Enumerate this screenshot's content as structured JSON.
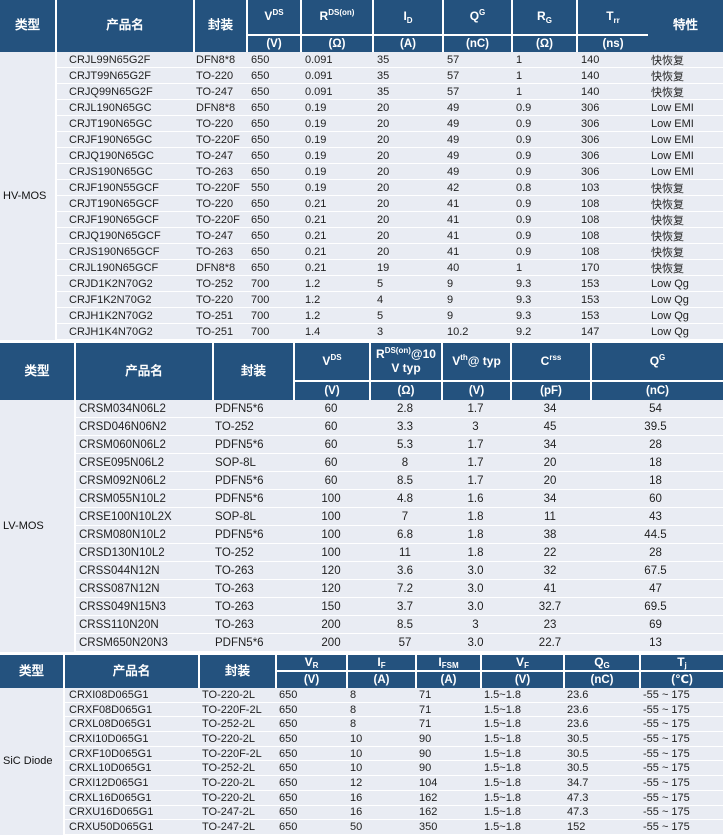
{
  "colors": {
    "header_bg": "#24527E",
    "row_bg": "#E9ECF3",
    "divider": "#FFFFFF",
    "header_text": "#FFFFFF",
    "body_text": "#1F1F1F"
  },
  "common_headers": {
    "type": "类型",
    "product": "产品名",
    "package": "封装",
    "feature": "特性"
  },
  "sections": [
    {
      "type_label": "HV-MOS",
      "params": [
        {
          "base": "V",
          "script": "DS",
          "rest": "",
          "unit": "(V)"
        },
        {
          "base": "R",
          "script": "DS(on)",
          "rest": "",
          "unit": "(Ω)"
        },
        {
          "base": "I",
          "script": "D",
          "rest": "",
          "unit": "(A)"
        },
        {
          "base": "Q",
          "script": "G",
          "rest": "",
          "unit": "(nC)"
        },
        {
          "base": "R",
          "script": "G",
          "rest": "",
          "unit": "(Ω)"
        },
        {
          "base": "T",
          "script": "rr",
          "rest": "",
          "unit": "(ns)"
        }
      ],
      "rows": [
        [
          "CRJL99N65G2F",
          "DFN8*8",
          "650",
          "0.091",
          "35",
          "57",
          "1",
          "140",
          "快恢复"
        ],
        [
          "CRJT99N65G2F",
          "TO-220",
          "650",
          "0.091",
          "35",
          "57",
          "1",
          "140",
          "快恢复"
        ],
        [
          "CRJQ99N65G2F",
          "TO-247",
          "650",
          "0.091",
          "35",
          "57",
          "1",
          "140",
          "快恢复"
        ],
        [
          "CRJL190N65GC",
          "DFN8*8",
          "650",
          "0.19",
          "20",
          "49",
          "0.9",
          "306",
          "Low EMI"
        ],
        [
          "CRJT190N65GC",
          "TO-220",
          "650",
          "0.19",
          "20",
          "49",
          "0.9",
          "306",
          "Low EMI"
        ],
        [
          "CRJF190N65GC",
          "TO-220F",
          "650",
          "0.19",
          "20",
          "49",
          "0.9",
          "306",
          "Low EMI"
        ],
        [
          "CRJQ190N65GC",
          "TO-247",
          "650",
          "0.19",
          "20",
          "49",
          "0.9",
          "306",
          "Low EMI"
        ],
        [
          "CRJS190N65GC",
          "TO-263",
          "650",
          "0.19",
          "20",
          "49",
          "0.9",
          "306",
          "Low EMI"
        ],
        [
          "CRJF190N55GCF",
          "TO-220F",
          "550",
          "0.19",
          "20",
          "42",
          "0.8",
          "103",
          "快恢复"
        ],
        [
          "CRJT190N65GCF",
          "TO-220",
          "650",
          "0.21",
          "20",
          "41",
          "0.9",
          "108",
          "快恢复"
        ],
        [
          "CRJF190N65GCF",
          "TO-220F",
          "650",
          "0.21",
          "20",
          "41",
          "0.9",
          "108",
          "快恢复"
        ],
        [
          "CRJQ190N65GCF",
          "TO-247",
          "650",
          "0.21",
          "20",
          "41",
          "0.9",
          "108",
          "快恢复"
        ],
        [
          "CRJS190N65GCF",
          "TO-263",
          "650",
          "0.21",
          "20",
          "41",
          "0.9",
          "108",
          "快恢复"
        ],
        [
          "CRJL190N65GCF",
          "DFN8*8",
          "650",
          "0.21",
          "19",
          "40",
          "1",
          "170",
          "快恢复"
        ],
        [
          "CRJD1K2N70G2",
          "TO-252",
          "700",
          "1.2",
          "5",
          "9",
          "9.3",
          "153",
          "Low Qg"
        ],
        [
          "CRJF1K2N70G2",
          "TO-220",
          "700",
          "1.2",
          "4",
          "9",
          "9.3",
          "153",
          "Low Qg"
        ],
        [
          "CRJH1K2N70G2",
          "TO-251",
          "700",
          "1.2",
          "5",
          "9",
          "9.3",
          "153",
          "Low Qg"
        ],
        [
          "CRJH1K4N70G2",
          "TO-251",
          "700",
          "1.4",
          "3",
          "10.2",
          "9.2",
          "147",
          "Low Qg"
        ]
      ]
    },
    {
      "type_label": "LV-MOS",
      "params": [
        {
          "base": "V",
          "script": "DS",
          "rest": "",
          "line2": "",
          "unit": "(V)"
        },
        {
          "base": "R",
          "script": "DS(on)",
          "rest": "@10",
          "line2": "V typ",
          "unit": "(Ω)"
        },
        {
          "base": "V",
          "script": "th",
          "rest": "@ typ",
          "line2": "",
          "unit": "(V)"
        },
        {
          "base": "C",
          "script": "rss",
          "rest": "",
          "line2": "",
          "unit": "(pF)"
        },
        {
          "base": "Q",
          "script": "G",
          "rest": "",
          "line2": "",
          "unit": "(nC)"
        }
      ],
      "rows": [
        [
          "CRSM034N06L2",
          "PDFN5*6",
          "60",
          "2.8",
          "1.7",
          "34",
          "54"
        ],
        [
          "CRSD046N06N2",
          "TO-252",
          "60",
          "3.3",
          "3",
          "45",
          "39.5"
        ],
        [
          "CRSM060N06L2",
          "PDFN5*6",
          "60",
          "5.3",
          "1.7",
          "34",
          "28"
        ],
        [
          "CRSE095N06L2",
          "SOP-8L",
          "60",
          "8",
          "1.7",
          "20",
          "18"
        ],
        [
          "CRSM092N06L2",
          "PDFN5*6",
          "60",
          "8.5",
          "1.7",
          "20",
          "18"
        ],
        [
          "CRSM055N10L2",
          "PDFN5*6",
          "100",
          "4.8",
          "1.6",
          "34",
          "60"
        ],
        [
          "CRSE100N10L2X",
          "SOP-8L",
          "100",
          "7",
          "1.8",
          "11",
          "43"
        ],
        [
          "CRSM080N10L2",
          "PDFN5*6",
          "100",
          "6.8",
          "1.8",
          "38",
          "44.5"
        ],
        [
          "CRSD130N10L2",
          "TO-252",
          "100",
          "11",
          "1.8",
          "22",
          "28"
        ],
        [
          "CRSS044N12N",
          "TO-263",
          "120",
          "3.6",
          "3.0",
          "32",
          "67.5"
        ],
        [
          "CRSS087N12N",
          "TO-263",
          "120",
          "7.2",
          "3.0",
          "41",
          "47"
        ],
        [
          "CRSS049N15N3",
          "TO-263",
          "150",
          "3.7",
          "3.0",
          "32.7",
          "69.5"
        ],
        [
          "CRSS110N20N",
          "TO-263",
          "200",
          "8.5",
          "3",
          "23",
          "69"
        ],
        [
          "CRSM650N20N3",
          "PDFN5*6",
          "200",
          "57",
          "3.0",
          "22.7",
          "13"
        ]
      ]
    },
    {
      "type_label": "SiC Diode",
      "params": [
        {
          "base": "V",
          "script": "R",
          "rest": "",
          "unit": "(V)"
        },
        {
          "base": "I",
          "script": "F",
          "rest": "",
          "unit": "(A)"
        },
        {
          "base": "I",
          "script": "FSM",
          "rest": "",
          "unit": "(A)"
        },
        {
          "base": "V",
          "script": "F",
          "rest": "",
          "unit": "(V)"
        },
        {
          "base": "Q",
          "script": "G",
          "rest": "",
          "unit": "(nC)"
        },
        {
          "base": "T",
          "script": "j",
          "rest": "",
          "unit": "(℃)"
        }
      ],
      "rows": [
        [
          "CRXI08D065G1",
          "TO-220-2L",
          "650",
          "8",
          "71",
          "1.5~1.8",
          "23.6",
          "-55 ~ 175"
        ],
        [
          "CRXF08D065G1",
          "TO-220F-2L",
          "650",
          "8",
          "71",
          "1.5~1.8",
          "23.6",
          "-55 ~ 175"
        ],
        [
          "CRXL08D065G1",
          "TO-252-2L",
          "650",
          "8",
          "71",
          "1.5~1.8",
          "23.6",
          "-55 ~ 175"
        ],
        [
          "CRXI10D065G1",
          "TO-220-2L",
          "650",
          "10",
          "90",
          "1.5~1.8",
          "30.5",
          "-55 ~ 175"
        ],
        [
          "CRXF10D065G1",
          "TO-220F-2L",
          "650",
          "10",
          "90",
          "1.5~1.8",
          "30.5",
          "-55 ~ 175"
        ],
        [
          "CRXL10D065G1",
          "TO-252-2L",
          "650",
          "10",
          "90",
          "1.5~1.8",
          "30.5",
          "-55 ~ 175"
        ],
        [
          "CRXI12D065G1",
          "TO-220-2L",
          "650",
          "12",
          "104",
          "1.5~1.8",
          "34.7",
          "-55 ~ 175"
        ],
        [
          "CRXL16D065G1",
          "TO-220-2L",
          "650",
          "16",
          "162",
          "1.5~1.8",
          "47.3",
          "-55 ~ 175"
        ],
        [
          "CRXU16D065G1",
          "TO-247-2L",
          "650",
          "16",
          "162",
          "1.5~1.8",
          "47.3",
          "-55 ~ 175"
        ],
        [
          "CRXU50D065G1",
          "TO-247-2L",
          "650",
          "50",
          "350",
          "1.5~1.8",
          "152",
          "-55 ~ 175"
        ]
      ]
    }
  ]
}
